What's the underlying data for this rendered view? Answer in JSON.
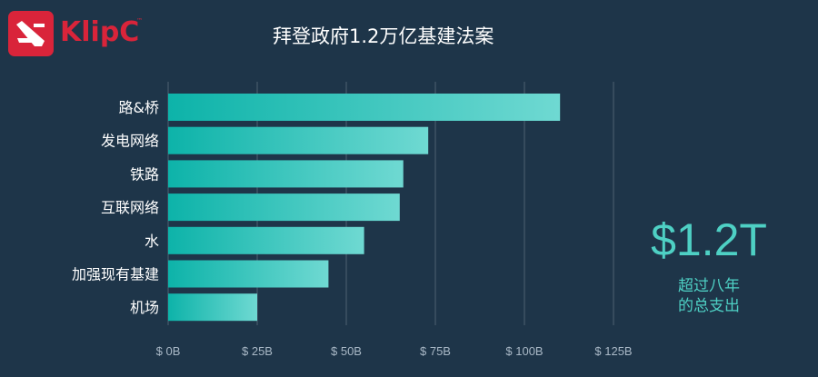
{
  "logo": {
    "wordmark": "KlipC",
    "tm": "™"
  },
  "header": {
    "title": "拜登政府1.2万亿基建法案"
  },
  "summary": {
    "value": "$1.2T",
    "caption_line1": "超过八年",
    "caption_line2": "的总支出"
  },
  "colors": {
    "background": "#1e3549",
    "bar_start": "#0db3a9",
    "bar_end": "#6fd9d2",
    "accent": "#4ed0c4",
    "brand": "#d9243a"
  },
  "chart_data": {
    "type": "bar",
    "orientation": "horizontal",
    "title": "拜登政府1.2万亿基建法案",
    "categories": [
      "路&桥",
      "发电网络",
      "铁路",
      "互联网络",
      "水",
      "加强现有基建",
      "机场"
    ],
    "values": [
      110,
      73,
      66,
      65,
      55,
      45,
      25
    ],
    "x_ticks": [
      "$ 0B",
      "$ 25B",
      "$ 50B",
      "$ 75B",
      "$ 100B",
      "$ 125B"
    ],
    "x_tick_values": [
      0,
      25,
      50,
      75,
      100,
      125
    ],
    "xlim": [
      0,
      137
    ],
    "grid": true
  }
}
